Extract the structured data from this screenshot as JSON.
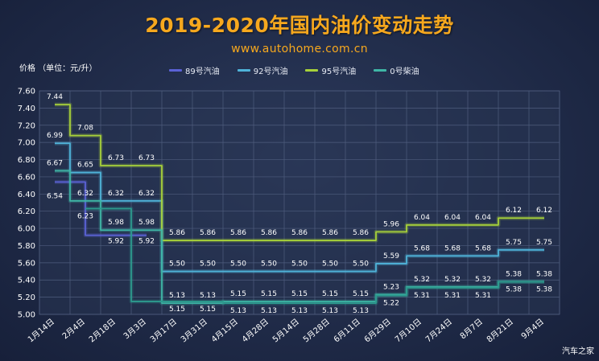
{
  "title": "2019-2020年国内油价变动走势",
  "subtitle": "www.autohome.com.cn",
  "watermark": "汽车之家",
  "chart_data": {
    "type": "line",
    "title": "2019-2020年国内油价变动走势",
    "ylabel": "价格 （单位：元/升）",
    "xlabel": "",
    "categories": [
      "1月14日",
      "2月4日",
      "2月18日",
      "3月3日",
      "3月17日",
      "3月31日",
      "4月15日",
      "4月28日",
      "5月14日",
      "5月28日",
      "6月11日",
      "6月29日",
      "7月10日",
      "7月24日",
      "8月7日",
      "8月21日",
      "9月4日"
    ],
    "ylim": [
      5.0,
      7.6
    ],
    "yticks": [
      "5.00",
      "5.20",
      "5.40",
      "5.60",
      "5.80",
      "6.00",
      "6.20",
      "6.40",
      "6.60",
      "6.80",
      "7.00",
      "7.20",
      "7.40",
      "7.60"
    ],
    "grid": true,
    "legend_position": "top",
    "series": [
      {
        "name": "89号汽油",
        "color": "#5b62d6",
        "values": [
          6.54,
          null,
          5.92,
          5.92,
          null,
          null,
          null,
          null,
          null,
          null,
          null,
          null,
          null,
          null,
          null,
          null,
          null
        ],
        "labels": [
          "6.54",
          "",
          "5.92",
          "5.92",
          "",
          "",
          "",
          "",
          "",
          "",
          "",
          "",
          "",
          "",
          "",
          "",
          ""
        ]
      },
      {
        "name": "92号汽油",
        "color": "#4fb3d9",
        "values": [
          6.99,
          6.65,
          6.32,
          6.32,
          5.5,
          5.5,
          5.5,
          5.5,
          5.5,
          5.5,
          5.5,
          5.59,
          5.68,
          5.68,
          5.68,
          5.75,
          5.75
        ],
        "labels": [
          "6.99",
          "6.65",
          "6.32",
          "6.32",
          "5.50",
          "5.50",
          "5.50",
          "5.50",
          "5.50",
          "5.50",
          "5.50",
          "5.59",
          "5.68",
          "5.68",
          "5.68",
          "5.75",
          "5.75"
        ]
      },
      {
        "name": "95号汽油",
        "color": "#a7d13a",
        "values": [
          7.44,
          7.08,
          6.73,
          6.73,
          5.86,
          5.86,
          5.86,
          5.86,
          5.86,
          5.86,
          5.86,
          5.96,
          6.04,
          6.04,
          6.04,
          6.12,
          6.12
        ],
        "labels": [
          "7.44",
          "7.08",
          "6.73",
          "6.73",
          "5.86",
          "5.86",
          "5.86",
          "5.86",
          "5.86",
          "5.86",
          "5.86",
          "5.96",
          "6.04",
          "6.04",
          "6.04",
          "6.12",
          "6.12"
        ]
      },
      {
        "name": "0号柴油",
        "color": "#3fb6a6",
        "values": [
          6.67,
          6.32,
          5.98,
          5.98,
          5.13,
          5.13,
          5.15,
          5.15,
          5.15,
          5.15,
          5.15,
          5.23,
          5.32,
          5.32,
          5.32,
          5.38,
          5.38
        ],
        "labels": [
          "6.67",
          "6.32",
          "5.98",
          "5.98",
          "5.13",
          "5.13",
          "5.15",
          "5.15",
          "5.15",
          "5.15",
          "5.15",
          "5.23",
          "5.32",
          "5.32",
          "5.32",
          "5.38",
          "5.38"
        ]
      },
      {
        "name": "",
        "color": "#2d9a8e",
        "values": [
          null,
          6.23,
          null,
          null,
          5.15,
          5.15,
          5.13,
          5.13,
          5.13,
          5.13,
          5.13,
          5.22,
          5.31,
          5.31,
          5.31,
          5.38,
          5.38
        ],
        "labels": [
          "",
          "6.23",
          "",
          "",
          "5.15",
          "5.15",
          "5.13",
          "5.13",
          "5.13",
          "5.13",
          "5.13",
          "5.22",
          "5.31",
          "5.31",
          "5.31",
          "5.38",
          "5.38"
        ]
      }
    ]
  }
}
